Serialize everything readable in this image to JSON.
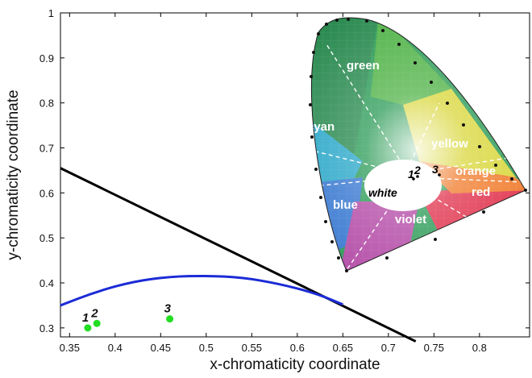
{
  "chart_data": {
    "type": "scatter",
    "xlabel": "x-chromaticity coordinate",
    "ylabel": "y-chromaticity coordinate",
    "xlim": [
      0.34,
      0.855
    ],
    "ylim": [
      0.28,
      1.0
    ],
    "x_ticks": [
      "0.35",
      "0.4",
      "0.45",
      "0.5",
      "0.55",
      "0.6",
      "0.65",
      "0.7",
      "0.75",
      "0.8"
    ],
    "y_ticks": [
      "0.3",
      "0.4",
      "0.5",
      "0.6",
      "0.7",
      "0.8",
      "0.9",
      "1"
    ],
    "grid": false,
    "series": [
      {
        "kind": "points",
        "color": "#22dd22",
        "points": [
          {
            "label": "1",
            "x": 0.37,
            "y": 0.3
          },
          {
            "label": "2",
            "x": 0.38,
            "y": 0.31
          },
          {
            "label": "3",
            "x": 0.46,
            "y": 0.32
          }
        ]
      },
      {
        "kind": "line",
        "color": "#000000",
        "x": [
          0.34,
          0.73
        ],
        "y": [
          0.655,
          0.27
        ]
      },
      {
        "kind": "curve",
        "color": "#1b2bd6",
        "x": [
          0.34,
          0.38,
          0.42,
          0.46,
          0.5,
          0.54,
          0.58,
          0.62,
          0.65
        ],
        "y": [
          0.35,
          0.381,
          0.403,
          0.414,
          0.416,
          0.412,
          0.398,
          0.377,
          0.352
        ]
      }
    ],
    "inset": {
      "description_free": true,
      "color_regions": [
        "green",
        "cyan",
        "yellow",
        "orange",
        "blue",
        "violet",
        "red"
      ],
      "center_label": "white",
      "points": [
        "1",
        "2",
        "3"
      ]
    }
  }
}
